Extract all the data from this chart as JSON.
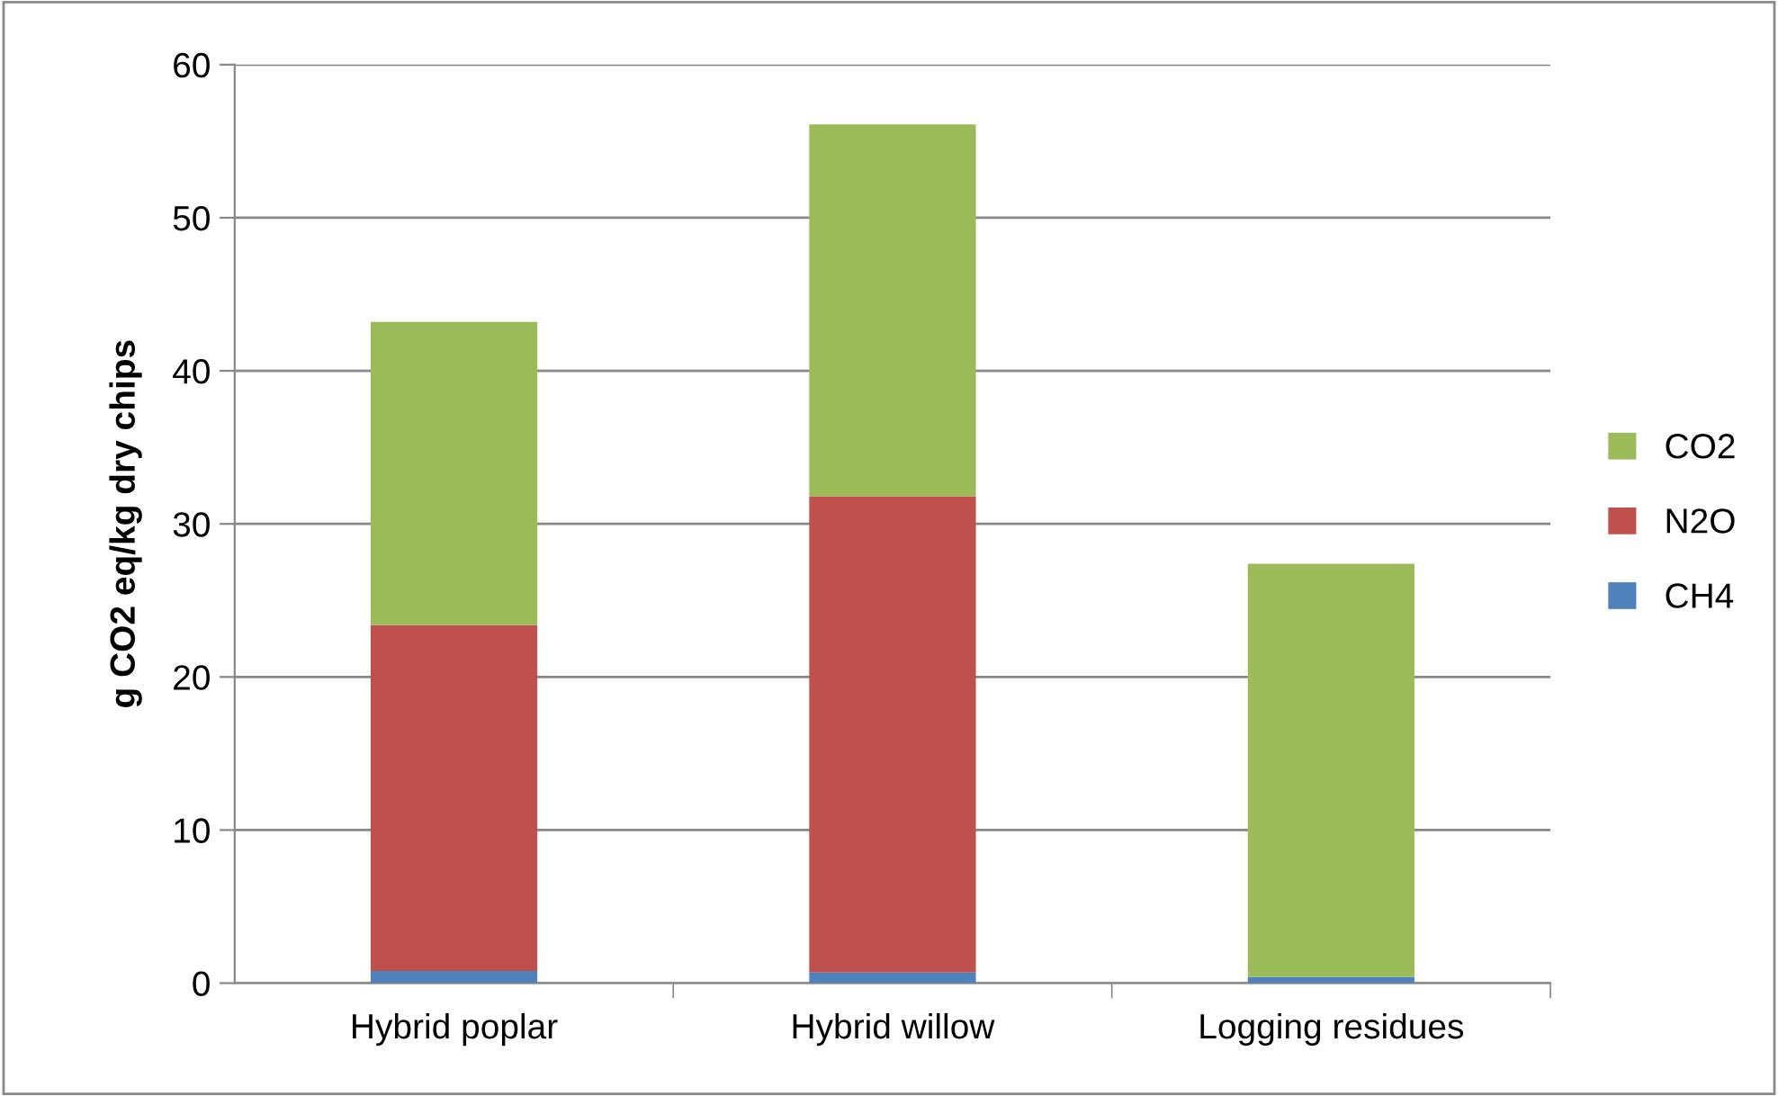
{
  "chart_data": {
    "type": "bar",
    "stacked": true,
    "ylabel": "g CO2 eq/kg dry chips",
    "categories": [
      "Hybrid poplar",
      "Hybrid willow",
      "Logging residues"
    ],
    "series": [
      {
        "name": "CH4",
        "color": "#4f81bd",
        "values": [
          0.8,
          0.7,
          0.4
        ]
      },
      {
        "name": "N2O",
        "color": "#c0504d",
        "values": [
          22.6,
          31.1,
          0
        ]
      },
      {
        "name": "CO2",
        "color": "#9bbb59",
        "values": [
          19.8,
          24.3,
          27.0
        ]
      }
    ],
    "ylim": [
      0,
      60
    ],
    "yticks": [
      0,
      10,
      20,
      30,
      40,
      50,
      60
    ],
    "grid": "y",
    "legend": "right"
  }
}
